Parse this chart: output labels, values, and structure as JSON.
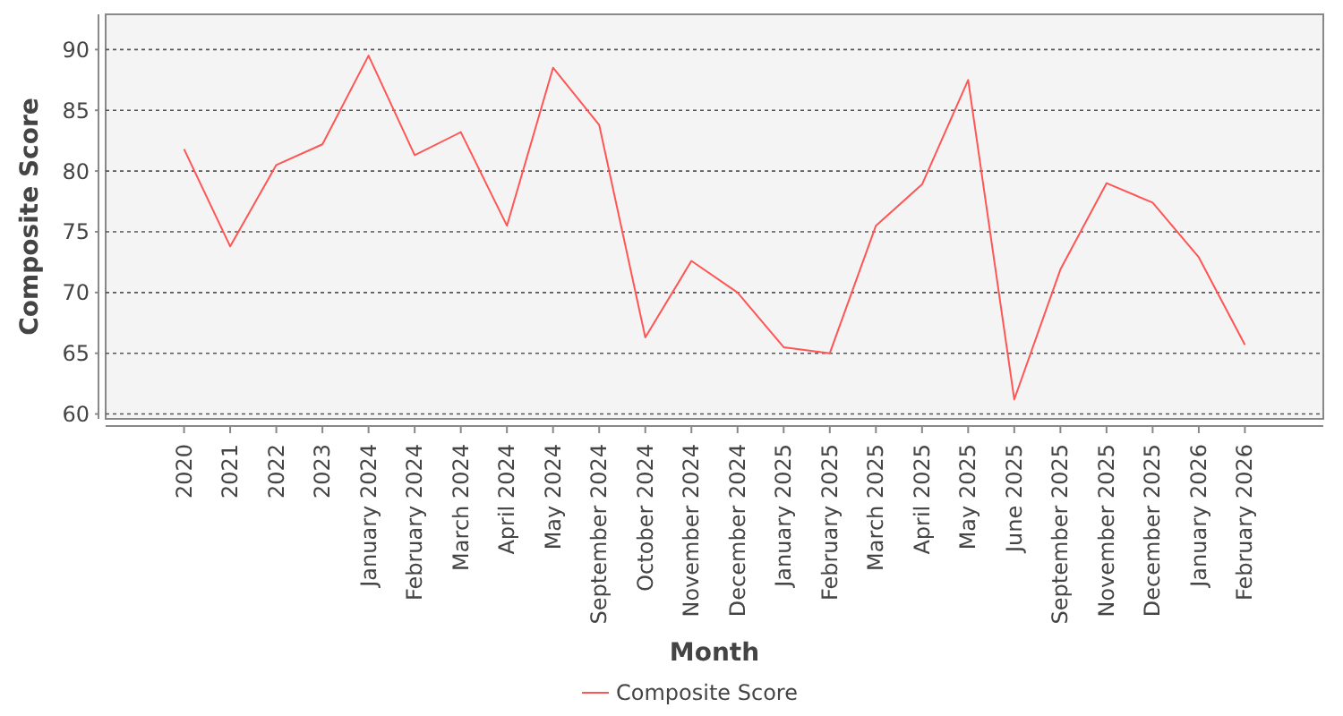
{
  "chart_data": {
    "type": "line",
    "xlabel": "Month",
    "ylabel": "Composite Score",
    "categories": [
      "2020",
      "2021",
      "2022",
      "2023",
      "January 2024",
      "February 2024",
      "March 2024",
      "April 2024",
      "May 2024",
      "September 2024",
      "October 2024",
      "November 2024",
      "December 2024",
      "January 2025",
      "February 2025",
      "March 2025",
      "April 2025",
      "May 2025",
      "June 2025",
      "September 2025",
      "November 2025",
      "December 2025",
      "January 2026",
      "February 2026"
    ],
    "series": [
      {
        "name": "Composite Score",
        "color": "#ff5555",
        "values": [
          81.8,
          73.8,
          80.5,
          82.2,
          89.5,
          81.3,
          83.2,
          75.5,
          88.5,
          83.8,
          66.3,
          72.6,
          70.0,
          65.5,
          65.0,
          75.5,
          78.9,
          87.5,
          61.2,
          71.9,
          79.0,
          77.4,
          72.9,
          65.7
        ]
      }
    ],
    "ylim": [
      59.6,
      92.9
    ],
    "yticks": [
      60,
      65,
      70,
      75,
      80,
      85,
      90
    ],
    "grid": "y",
    "legend": "bottom",
    "marker": "none",
    "line_style": "solid"
  }
}
